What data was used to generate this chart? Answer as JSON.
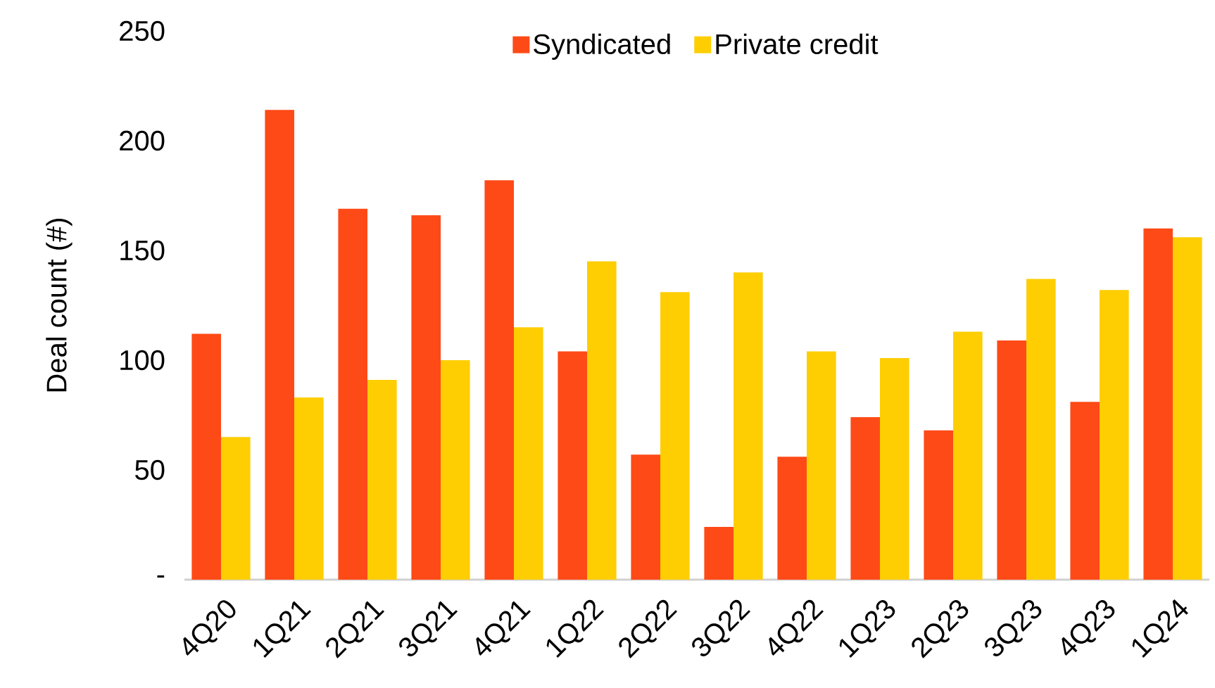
{
  "chart_data": {
    "type": "bar",
    "ylabel": "Deal count (#)",
    "categories": [
      "4Q20",
      "1Q21",
      "2Q21",
      "3Q21",
      "4Q21",
      "1Q22",
      "2Q22",
      "3Q22",
      "4Q22",
      "1Q23",
      "2Q23",
      "3Q23",
      "4Q23",
      "1Q24"
    ],
    "series": [
      {
        "name": "Syndicated",
        "color": "#fe4a17",
        "values": [
          112,
          214,
          169,
          166,
          182,
          104,
          57,
          24,
          56,
          74,
          68,
          109,
          81,
          160
        ]
      },
      {
        "name": "Private credit",
        "color": "#fece03",
        "values": [
          65,
          83,
          91,
          100,
          115,
          145,
          131,
          140,
          104,
          101,
          113,
          137,
          132,
          156
        ]
      }
    ],
    "ylim": [
      0,
      250
    ],
    "yticks": [
      {
        "value": 0,
        "label": "-"
      },
      50,
      100,
      150,
      200,
      250
    ],
    "legend": "top"
  }
}
